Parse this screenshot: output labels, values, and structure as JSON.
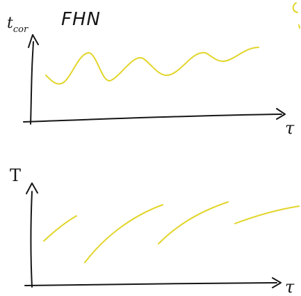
{
  "sketch": {
    "title": "FHN",
    "top_plot": {
      "y_label": "t_cor",
      "y_label_main": "t",
      "y_label_sub": "cor",
      "x_label": "τ"
    },
    "bottom_plot": {
      "y_label": "T",
      "x_label": "τ"
    },
    "colors": {
      "ink": "#161616",
      "curve": "#e2d52a",
      "background": "#ffffff"
    }
  }
}
